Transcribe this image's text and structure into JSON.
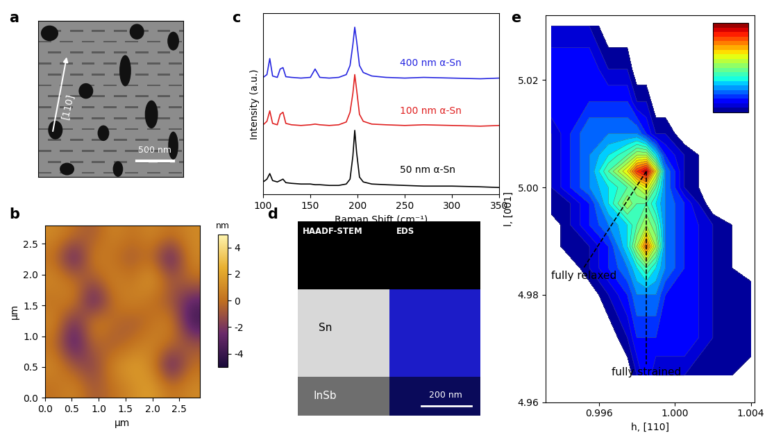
{
  "chart_data": [
    {
      "panel": "c",
      "type": "line",
      "xlabel": "Raman Shift (cm⁻¹)",
      "ylabel": "Intensity (a.u.)",
      "x": [
        100,
        104,
        107,
        110,
        115,
        118,
        121,
        124,
        130,
        140,
        150,
        155,
        160,
        170,
        180,
        188,
        192,
        195,
        197,
        199,
        202,
        206,
        215,
        230,
        250,
        270,
        300,
        330,
        350
      ],
      "series": [
        {
          "name": "400 nm α-Sn",
          "color": "#2424e0",
          "values": [
            1.68,
            1.72,
            1.95,
            1.7,
            1.68,
            1.8,
            1.82,
            1.69,
            1.68,
            1.67,
            1.68,
            1.8,
            1.68,
            1.67,
            1.68,
            1.72,
            1.85,
            2.15,
            2.4,
            2.2,
            1.85,
            1.75,
            1.7,
            1.68,
            1.67,
            1.68,
            1.67,
            1.66,
            1.67
          ]
        },
        {
          "name": "100 nm α-Sn",
          "color": "#e02020",
          "values": [
            1.0,
            1.05,
            1.2,
            1.02,
            1.0,
            1.15,
            1.18,
            1.02,
            1.0,
            0.99,
            1.0,
            1.01,
            1.0,
            0.99,
            1.0,
            1.04,
            1.18,
            1.45,
            1.72,
            1.5,
            1.15,
            1.05,
            1.01,
            1.0,
            0.99,
            1.0,
            0.99,
            0.98,
            0.99
          ]
        },
        {
          "name": "50 nm α-Sn",
          "color": "#000000",
          "values": [
            0.18,
            0.22,
            0.3,
            0.2,
            0.18,
            0.2,
            0.22,
            0.17,
            0.16,
            0.15,
            0.15,
            0.14,
            0.14,
            0.13,
            0.13,
            0.15,
            0.22,
            0.55,
            0.92,
            0.6,
            0.25,
            0.18,
            0.15,
            0.14,
            0.13,
            0.12,
            0.12,
            0.11,
            0.1
          ]
        }
      ],
      "xlim": [
        100,
        350
      ],
      "xticks": [
        100,
        150,
        200,
        250,
        300,
        350
      ],
      "ylim": [
        0,
        2.6
      ],
      "tick_labels": "x"
    },
    {
      "panel": "b",
      "type": "heatmap",
      "xlabel": "µm",
      "ylabel": "µm",
      "xlim": [
        0.0,
        2.88
      ],
      "ylim": [
        0.0,
        2.8
      ],
      "xticks": [
        0.0,
        0.5,
        1.0,
        1.5,
        2.0,
        2.5
      ],
      "yticks": [
        0.0,
        0.5,
        1.0,
        1.5,
        2.0,
        2.5
      ],
      "cells": [
        [
          0,
          1,
          -1,
          0,
          1,
          2,
          0,
          1
        ],
        [
          1,
          -1,
          -2,
          1,
          2,
          1,
          -4,
          0
        ],
        [
          0,
          -4,
          0,
          -1,
          0,
          1,
          0,
          -1
        ],
        [
          1,
          -3,
          1,
          0,
          -1,
          0,
          1,
          -4
        ],
        [
          0,
          1,
          -4,
          0,
          1,
          0,
          -1,
          -3
        ],
        [
          1,
          0,
          -1,
          1,
          0,
          2,
          -1,
          0
        ],
        [
          0,
          -4,
          1,
          0,
          -1,
          0,
          -4,
          1
        ],
        [
          1,
          0,
          -1,
          1,
          0,
          1,
          0,
          1
        ]
      ],
      "colorbar": {
        "range": [
          -5,
          5
        ],
        "ticks": [
          -4,
          -2,
          0,
          2,
          4
        ],
        "label": "nm"
      }
    },
    {
      "panel": "e",
      "type": "contour",
      "xlabel": "h, [110]",
      "ylabel": "l, [001]",
      "xlim": [
        0.9932,
        1.0042
      ],
      "ylim": [
        4.96,
        5.032
      ],
      "xticks": [
        0.996,
        {
          "value": 1.0,
          "label": "1.000"
        },
        1.004
      ],
      "yticks": [
        4.96,
        4.98,
        {
          "value": 5.0,
          "label": "5.00"
        },
        5.02
      ],
      "h": [
        0.9935,
        0.9945,
        0.9955,
        0.9965,
        0.9975,
        0.998,
        0.9985,
        0.999,
        0.9995,
        1.0005,
        1.002,
        1.004
      ],
      "l": [
        4.965,
        4.972,
        4.98,
        4.985,
        4.989,
        4.993,
        4.997,
        5.0,
        5.003,
        5.006,
        5.01,
        5.016,
        5.022,
        5.03
      ],
      "cells": [
        [
          0,
          0,
          0,
          0,
          0,
          1,
          2,
          1,
          1,
          1,
          1,
          0
        ],
        [
          0,
          0,
          0,
          0,
          1,
          2,
          2,
          2,
          2,
          2,
          1,
          1
        ],
        [
          0,
          0,
          0,
          1,
          2,
          3,
          3,
          3,
          2,
          2,
          1,
          1
        ],
        [
          0,
          0,
          1,
          2,
          3,
          4,
          5,
          4,
          3,
          2,
          1,
          0
        ],
        [
          0,
          1,
          1,
          2,
          4,
          6,
          8.5,
          6,
          3,
          2,
          1,
          0
        ],
        [
          0,
          1,
          2,
          3,
          4,
          5,
          6,
          5,
          3,
          2,
          1,
          0
        ],
        [
          1,
          1,
          2,
          4,
          6,
          5,
          5,
          4,
          3,
          2,
          0,
          0
        ],
        [
          1,
          2,
          3,
          4,
          5,
          6,
          7,
          5,
          3,
          1,
          0,
          0
        ],
        [
          1,
          2,
          3,
          5,
          7,
          9,
          10,
          7,
          3,
          1,
          0,
          0
        ],
        [
          1,
          2,
          3,
          4,
          5,
          6,
          6,
          4,
          2,
          1,
          0,
          0
        ],
        [
          1,
          2,
          3,
          3,
          3,
          3,
          2,
          1,
          1,
          0,
          0,
          0
        ],
        [
          2,
          2,
          2,
          2,
          2,
          1,
          1,
          0,
          0,
          0,
          0,
          0
        ],
        [
          2,
          2,
          2,
          1,
          1,
          0,
          0,
          0,
          0,
          0,
          0,
          0
        ],
        [
          1,
          1,
          1,
          0,
          0,
          0,
          0,
          0,
          0,
          0,
          0,
          0
        ]
      ],
      "colorbar": {
        "range": [
          0.5,
          10.5
        ]
      },
      "annotations": [
        {
          "text": "fully relaxed",
          "line": [
            [
              0.9985,
              5.003
            ],
            [
              0.9952,
              4.985
            ]
          ]
        },
        {
          "text": "fully strained",
          "line": [
            [
              0.9985,
              5.003
            ],
            [
              0.9985,
              4.967
            ]
          ]
        }
      ]
    }
  ],
  "images": [
    {
      "panel": "a",
      "type": "sem_image",
      "arrow_label": "[110]",
      "scale_bar": "500 nm"
    },
    {
      "panel": "d",
      "type": "stem_image",
      "titles": [
        "HAADF-STEM",
        "EDS"
      ],
      "layers": [
        "Sn",
        "InSb"
      ],
      "scale_bar": "200 nm"
    }
  ]
}
